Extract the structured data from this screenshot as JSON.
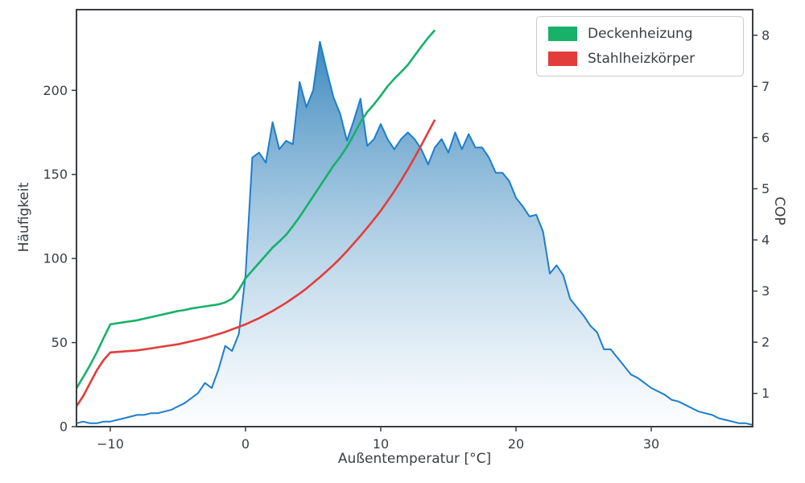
{
  "styles": {
    "background": "#ffffff",
    "text_color": "#3a3e42",
    "spine_color": "#3a3e42"
  },
  "chart_data": {
    "type": "area",
    "title": "",
    "xlabel": "Außentemperatur [°C]",
    "ylabel_left": "Häufigkeit",
    "ylabel_right": "COP",
    "xlim": [
      -12.5,
      37.5
    ],
    "ylim_left": [
      0,
      248
    ],
    "ylim_right": [
      0.35,
      8.5
    ],
    "xticks": [
      -10,
      0,
      10,
      20,
      30
    ],
    "yticks_left": [
      0,
      50,
      100,
      150,
      200
    ],
    "yticks_right": [
      1,
      2,
      3,
      4,
      5,
      6,
      7,
      8
    ],
    "grid": false,
    "legend_position": "upper right",
    "histogram": {
      "name": "Häufigkeit",
      "axis": "left",
      "line_color": "#1e7dcc",
      "fill_top_color": "#1f77b4",
      "fill_bottom_color": "#fbfdff",
      "x": [
        -12.5,
        -12,
        -11.5,
        -11,
        -10.5,
        -10,
        -9.5,
        -9,
        -8.5,
        -8,
        -7.5,
        -7,
        -6.5,
        -6,
        -5.5,
        -5,
        -4.5,
        -4,
        -3.5,
        -3,
        -2.5,
        -2,
        -1.5,
        -1,
        -0.5,
        0,
        0.5,
        1,
        1.5,
        2,
        2.5,
        3,
        3.5,
        4,
        4.5,
        5,
        5.5,
        6,
        6.5,
        7,
        7.5,
        8,
        8.5,
        9,
        9.5,
        10,
        10.5,
        11,
        11.5,
        12,
        12.5,
        13,
        13.5,
        14,
        14.5,
        15,
        15.5,
        16,
        16.5,
        17,
        17.5,
        18,
        18.5,
        19,
        19.5,
        20,
        20.5,
        21,
        21.5,
        22,
        22.5,
        23,
        23.5,
        24,
        24.5,
        25,
        25.5,
        26,
        26.5,
        27,
        27.5,
        28,
        28.5,
        29,
        29.5,
        30,
        30.5,
        31,
        31.5,
        32,
        32.5,
        33,
        33.5,
        34,
        34.5,
        35,
        35.5,
        36,
        36.5,
        37,
        37.5
      ],
      "values": [
        2,
        3,
        2,
        2,
        3,
        3,
        4,
        5,
        6,
        7,
        7,
        8,
        8,
        9,
        10,
        12,
        14,
        17,
        20,
        26,
        23,
        34,
        48,
        45,
        55,
        90,
        160,
        163,
        157,
        181,
        165,
        170,
        168,
        205,
        190,
        200,
        229,
        212,
        196,
        186,
        170,
        182,
        195,
        167,
        171,
        180,
        171,
        165,
        171,
        175,
        171,
        165,
        156,
        166,
        171,
        163,
        175,
        165,
        174,
        166,
        166,
        160,
        151,
        151,
        146,
        136,
        131,
        125,
        126,
        116,
        91,
        96,
        90,
        76,
        71,
        66,
        60,
        56,
        46,
        46,
        41,
        36,
        31,
        29,
        26,
        23,
        21,
        19,
        16,
        15,
        13,
        11,
        9,
        8,
        7,
        5,
        4,
        3,
        2,
        2,
        1
      ]
    },
    "line_x": [
      -12.5,
      -12,
      -11.5,
      -11,
      -10.5,
      -10,
      -9.5,
      -9,
      -8.5,
      -8,
      -7.5,
      -7,
      -6.5,
      -6,
      -5.5,
      -5,
      -4.5,
      -4,
      -3.5,
      -3,
      -2.5,
      -2,
      -1.5,
      -1,
      -0.5,
      0,
      0.5,
      1,
      1.5,
      2,
      2.5,
      3,
      3.5,
      4,
      4.5,
      5,
      5.5,
      6,
      6.5,
      7,
      7.5,
      8,
      8.5,
      9,
      9.5,
      10,
      10.5,
      11,
      11.5,
      12,
      12.5,
      13,
      13.5,
      14
    ],
    "series": [
      {
        "name": "Deckenheizung",
        "axis": "right",
        "color": "#17b169",
        "values": [
          1.1,
          1.32,
          1.55,
          1.8,
          2.08,
          2.35,
          2.37,
          2.39,
          2.41,
          2.43,
          2.46,
          2.49,
          2.52,
          2.55,
          2.58,
          2.61,
          2.63,
          2.66,
          2.68,
          2.7,
          2.72,
          2.74,
          2.78,
          2.85,
          3.02,
          3.25,
          3.4,
          3.55,
          3.7,
          3.85,
          3.97,
          4.1,
          4.27,
          4.45,
          4.65,
          4.85,
          5.05,
          5.25,
          5.45,
          5.62,
          5.82,
          6.05,
          6.3,
          6.5,
          6.65,
          6.82,
          7.0,
          7.15,
          7.28,
          7.42,
          7.6,
          7.78,
          7.95,
          8.1
        ]
      },
      {
        "name": "Stahlheizkörper",
        "axis": "right",
        "color": "#e33d3b",
        "values": [
          0.75,
          0.95,
          1.2,
          1.45,
          1.65,
          1.8,
          1.81,
          1.82,
          1.83,
          1.84,
          1.86,
          1.88,
          1.9,
          1.92,
          1.94,
          1.96,
          1.99,
          2.02,
          2.05,
          2.08,
          2.12,
          2.16,
          2.2,
          2.25,
          2.3,
          2.35,
          2.41,
          2.47,
          2.54,
          2.61,
          2.69,
          2.77,
          2.86,
          2.95,
          3.05,
          3.16,
          3.27,
          3.39,
          3.51,
          3.64,
          3.78,
          3.93,
          4.08,
          4.24,
          4.4,
          4.57,
          4.76,
          4.95,
          5.16,
          5.38,
          5.61,
          5.85,
          6.1,
          6.35
        ]
      }
    ]
  }
}
